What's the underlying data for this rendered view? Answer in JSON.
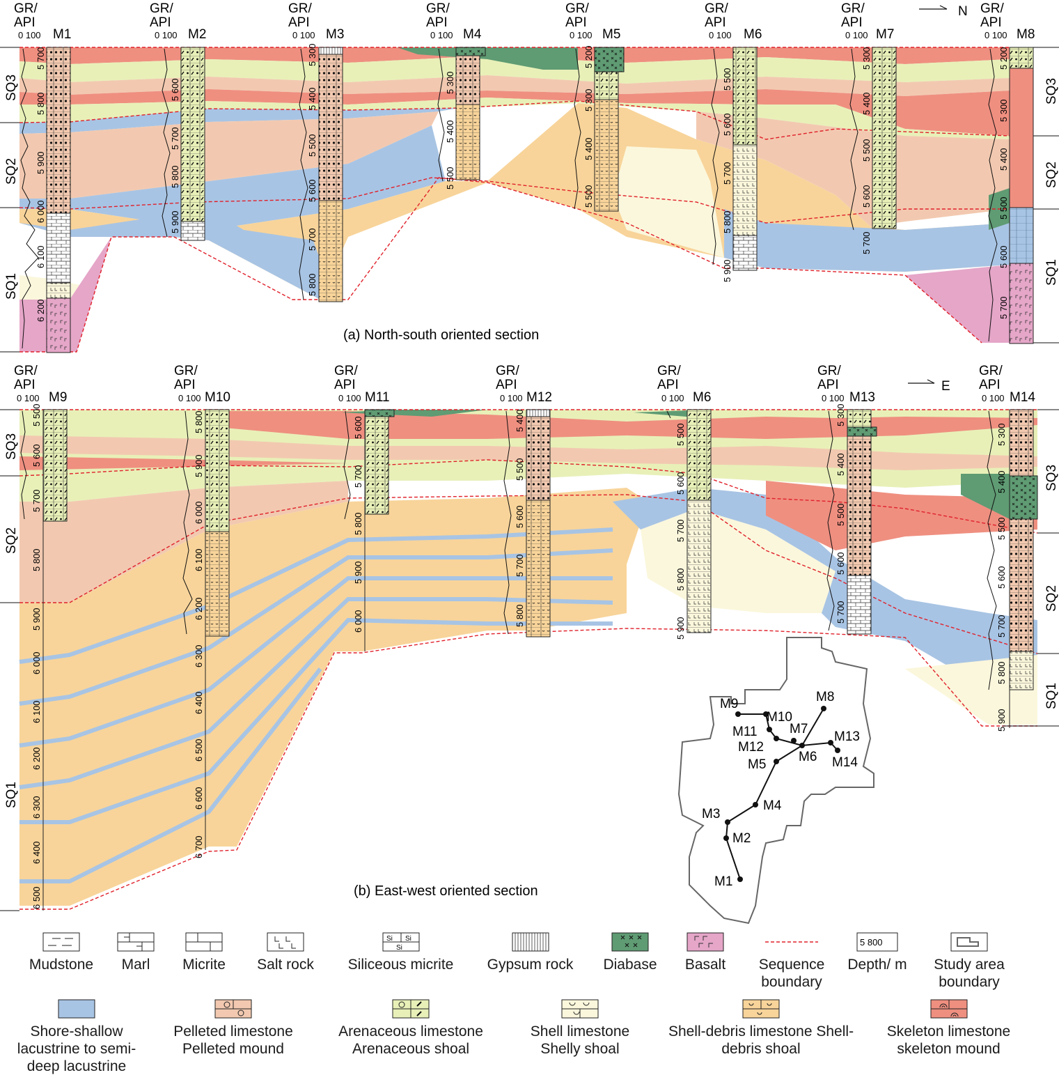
{
  "section_a": {
    "caption": "(a) North-south oriented section",
    "direction": "N",
    "wells": [
      "M1",
      "M2",
      "M3",
      "M4",
      "M5",
      "M6",
      "M7",
      "M8"
    ],
    "gr_label": [
      "GR/",
      "API"
    ],
    "gr_scale": "0 100",
    "sequences_left": [
      "SQ3",
      "SQ2",
      "SQ1"
    ],
    "sequences_right": [
      "SQ3",
      "SQ2",
      "SQ1"
    ],
    "depths": {
      "M1": [
        "5 700",
        "5 800",
        "5 900",
        "6 000",
        "6 100",
        "6 200"
      ],
      "M2": [
        "5 600",
        "5 700",
        "5 800",
        "5 900"
      ],
      "M3": [
        "5 300",
        "5 400",
        "5 500",
        "5 600",
        "5 700",
        "5 800"
      ],
      "M4": [
        "5 300",
        "5 400",
        "5 500"
      ],
      "M5": [
        "5 200",
        "5 300",
        "5 400",
        "5 500"
      ],
      "M6": [
        "5 500",
        "5 600",
        "5 700",
        "5 800",
        "5 900"
      ],
      "M7": [
        "5 300",
        "5 400",
        "5 500",
        "5 600",
        "5 700"
      ],
      "M8": [
        "5 200",
        "5 300",
        "5 400",
        "5 500",
        "5 600",
        "5 700"
      ]
    }
  },
  "section_b": {
    "caption": "(b) East-west oriented section",
    "direction": "E",
    "wells": [
      "M9",
      "M10",
      "M11",
      "M12",
      "M6",
      "M13",
      "M14"
    ],
    "gr_label": [
      "GR/",
      "API"
    ],
    "gr_scale": "0 100",
    "sequences_left": [
      "SQ3",
      "SQ2",
      "SQ1"
    ],
    "sequences_right": [
      "SQ3",
      "SQ2",
      "SQ1"
    ],
    "depths": {
      "M9": [
        "5 500",
        "5 600",
        "5 700",
        "5 800",
        "5 900",
        "6 000",
        "6 100",
        "6 200",
        "6 300",
        "6 400",
        "6 500"
      ],
      "M10": [
        "5 800",
        "5 900",
        "6 000",
        "6 100",
        "6 200",
        "6 300",
        "6 400",
        "6 500",
        "6 600",
        "6 700"
      ],
      "M11": [
        "5 600",
        "5 700",
        "5 800",
        "5 900",
        "6 000"
      ],
      "M12": [
        "5 400",
        "5 500",
        "5 600",
        "5 700",
        "5 800"
      ],
      "M6": [
        "5 500",
        "5 600",
        "5 700",
        "5 800",
        "5 900"
      ],
      "M13": [
        "5 300",
        "5 400",
        "5 500",
        "5 600",
        "5 700"
      ],
      "M14": [
        "5 300",
        "5 400",
        "5 500",
        "5 600",
        "5 700",
        "5 800",
        "5 900"
      ]
    }
  },
  "map": {
    "wells": [
      "M1",
      "M2",
      "M3",
      "M4",
      "M5",
      "M6",
      "M7",
      "M8",
      "M9",
      "M10",
      "M11",
      "M12",
      "M13",
      "M14"
    ]
  },
  "legend": {
    "lithology": [
      {
        "label": "Mudstone",
        "pattern": "mudstone"
      },
      {
        "label": "Marl",
        "pattern": "marl"
      },
      {
        "label": "Micrite",
        "pattern": "micrite"
      },
      {
        "label": "Salt rock",
        "pattern": "salt"
      },
      {
        "label": "Siliceous micrite",
        "pattern": "siliceous"
      },
      {
        "label": "Gypsum rock",
        "pattern": "gypsum"
      },
      {
        "label": "Diabase",
        "pattern": "diabase"
      },
      {
        "label": "Basalt",
        "pattern": "basalt"
      },
      {
        "label": "Sequence boundary",
        "pattern": "seq-boundary"
      },
      {
        "label": "Depth/ m",
        "pattern": "depth",
        "sample": "5 800"
      },
      {
        "label": "Study area boundary",
        "pattern": "study-area"
      }
    ],
    "facies": [
      {
        "label": "Shore-shallow lacustrine to semi-deep lacustrine",
        "color": "#a8c4e4"
      },
      {
        "label": "Pelleted limestone Pelleted mound",
        "color": "#f2c9b0"
      },
      {
        "label": "Arenaceous limestone Arenaceous shoal",
        "color": "#e8f0b8"
      },
      {
        "label": "Shell limestone Shelly shoal",
        "color": "#fbf7dc"
      },
      {
        "label": "Shell-debris limestone Shell-debris shoal",
        "color": "#f8d49a"
      },
      {
        "label": "Skeleton limestone skeleton mound",
        "color": "#ef8f80"
      }
    ]
  },
  "colors": {
    "lake": "#a8c4e4",
    "pellet": "#f2c9b0",
    "aren": "#e8f0b8",
    "shell": "#fbf7dc",
    "debris": "#f8d49a",
    "skeleton": "#ef8f80",
    "diabase": "#5f9b73",
    "basalt": "#e5a6c8",
    "boundary": "#e0202a"
  }
}
